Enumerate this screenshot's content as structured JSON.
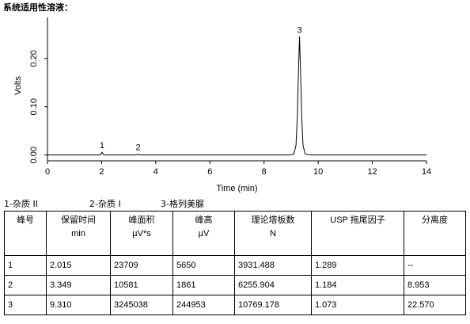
{
  "title": "系统适用性溶液：",
  "chart_data": {
    "type": "line",
    "xlabel": "Time (min)",
    "ylabel": "Volts",
    "xlim": [
      0,
      14
    ],
    "xticks": [
      0,
      2,
      4,
      6,
      8,
      10,
      12,
      14
    ],
    "ylim": [
      -0.012,
      0.285
    ],
    "yticks": [
      {
        "value": 0,
        "label": "0.00"
      },
      {
        "value": 0.1,
        "label": "0.10"
      },
      {
        "value": 0.2,
        "label": "0.20"
      }
    ],
    "series": [
      {
        "color": "#000000",
        "x": [
          0,
          1.95,
          2.015,
          2.08,
          3.28,
          3.349,
          3.42,
          8.95,
          9.1,
          9.18,
          9.23,
          9.27,
          9.31,
          9.35,
          9.39,
          9.44,
          9.52,
          9.7,
          14
        ],
        "values": [
          0,
          0,
          0.0057,
          0,
          0,
          0.0019,
          0,
          0,
          0.002,
          0.02,
          0.08,
          0.17,
          0.245,
          0.17,
          0.08,
          0.02,
          0.002,
          0,
          0
        ]
      }
    ],
    "annotations": [
      {
        "text": "1",
        "x": 2.015,
        "y": 0.0057
      },
      {
        "text": "2",
        "x": 3.349,
        "y": 0.0019
      },
      {
        "text": "3",
        "x": 9.31,
        "y": 0.245
      }
    ]
  },
  "legend": [
    "1-杂质 II",
    "2-杂质 I",
    "3-格列美脲"
  ],
  "table": {
    "header": [
      [
        "峰号"
      ],
      [
        "保留时间",
        "min"
      ],
      [
        "峰面积",
        "µV*s"
      ],
      [
        "峰高",
        "µV"
      ],
      [
        "理论塔板数",
        "N"
      ],
      [
        "USP 拖尾因子"
      ],
      [
        "分离度"
      ]
    ],
    "rows": [
      [
        "1",
        "2.015",
        "23709",
        "5650",
        "3931.488",
        "1.289",
        "--"
      ],
      [
        "2",
        "3.349",
        "10581",
        "1861",
        "6255.904",
        "1.184",
        "8.953"
      ],
      [
        "3",
        "9.310",
        "3245038",
        "244953",
        "10769.178",
        "1.073",
        "22.570"
      ]
    ]
  }
}
